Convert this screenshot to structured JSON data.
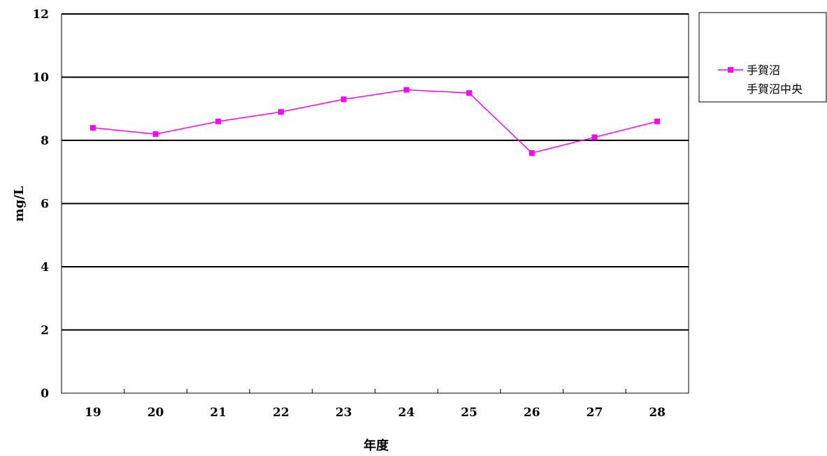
{
  "chart_data": {
    "type": "line",
    "title": "",
    "xlabel": "年度",
    "ylabel": "mg/L",
    "categories": [
      "19",
      "20",
      "21",
      "22",
      "23",
      "24",
      "25",
      "26",
      "27",
      "28"
    ],
    "ylim": [
      0,
      12
    ],
    "yticks": [
      "0",
      "2",
      "4",
      "6",
      "8",
      "10",
      "12"
    ],
    "grid": true,
    "legend_position": "right",
    "series": [
      {
        "name": "手賀沼",
        "subtitle": "手賀沼中央",
        "color": "#ff00ff",
        "marker": "square",
        "values": [
          8.4,
          8.2,
          8.6,
          8.9,
          9.3,
          9.6,
          9.5,
          7.6,
          8.1,
          8.6
        ]
      }
    ]
  }
}
